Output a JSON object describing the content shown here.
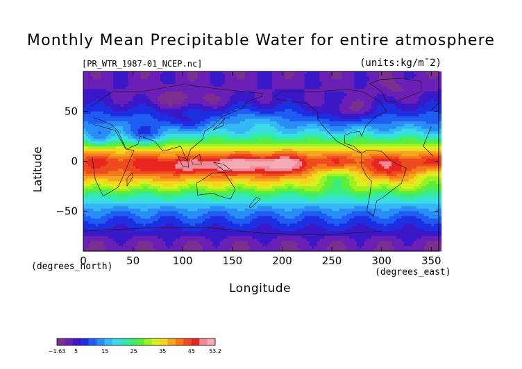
{
  "chart_data": {
    "type": "heatmap",
    "title": "Monthly Mean Precipitable Water for entire atmosphere",
    "file_label": "[PR_WTR_1987-01_NCEP.nc]",
    "units_label": "(units:kg/m¯2)",
    "xlabel": "Longitude",
    "ylabel": "Latitude",
    "x_unit_label": "(degrees_east)",
    "y_unit_label": "(degrees_north)",
    "xlim": [
      0,
      357.5
    ],
    "ylim": [
      -90,
      90
    ],
    "x_ticks": [
      0,
      50,
      100,
      150,
      200,
      250,
      300,
      350
    ],
    "y_ticks": [
      -50,
      0,
      50
    ],
    "colorbar": {
      "min": -1.63,
      "max": 53.2,
      "tick_values": [
        -1.63,
        5,
        15,
        25,
        35,
        45,
        53.2
      ],
      "tick_labels": [
        "-1.63",
        "5",
        "15",
        "25",
        "35",
        "45",
        "53.2"
      ],
      "colors": [
        "#7b2f8f",
        "#6a1fb5",
        "#3a18c8",
        "#1d2fe0",
        "#1f5cf2",
        "#2a8cf6",
        "#35b8f5",
        "#3ddbe9",
        "#32e8b8",
        "#3cec7b",
        "#5cee3c",
        "#9cf024",
        "#d9ef1f",
        "#f5d51e",
        "#f7a51e",
        "#f47a1d",
        "#ee4b1e",
        "#e8261f",
        "#f08a98",
        "#f4aab2"
      ]
    },
    "zonal_mean_profile": {
      "lat": [
        -90,
        -80,
        -70,
        -60,
        -50,
        -40,
        -30,
        -20,
        -10,
        0,
        10,
        20,
        30,
        40,
        50,
        60,
        70,
        80,
        90
      ],
      "values": [
        1.5,
        2.5,
        6,
        9,
        13,
        19,
        27,
        36,
        43,
        45,
        37,
        26,
        17,
        12,
        8,
        5,
        4,
        3,
        2.5
      ]
    }
  }
}
